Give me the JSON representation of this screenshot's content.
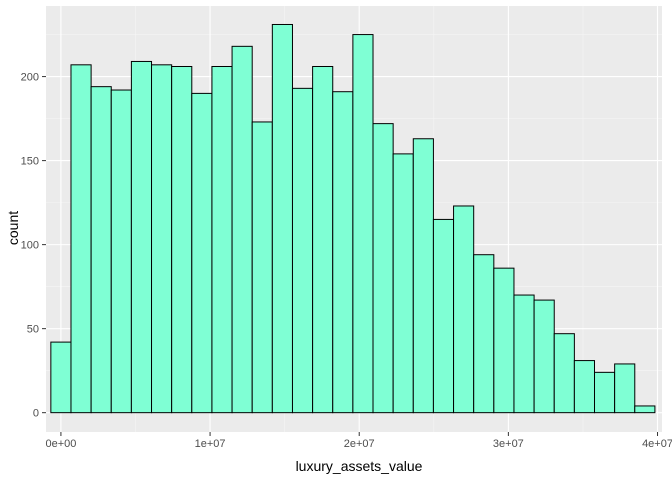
{
  "chart_data": {
    "type": "bar",
    "xlabel": "luxury_assets_value",
    "ylabel": "count",
    "xlim": [
      -1000000,
      40300000
    ],
    "ylim": [
      -11.5,
      242
    ],
    "grid": true,
    "bin_width": 1350000,
    "first_bin_left": -675000,
    "counts": [
      42,
      207,
      194,
      192,
      209,
      207,
      206,
      190,
      206,
      218,
      173,
      231,
      193,
      206,
      191,
      225,
      172,
      154,
      163,
      115,
      123,
      94,
      86,
      70,
      67,
      47,
      31,
      24,
      29,
      4
    ],
    "x_ticks": [
      {
        "value": 0,
        "label": "0e+00"
      },
      {
        "value": 10000000,
        "label": "1e+07"
      },
      {
        "value": 20000000,
        "label": "2e+07"
      },
      {
        "value": 30000000,
        "label": "3e+07"
      },
      {
        "value": 40000000,
        "label": "4e+07"
      }
    ],
    "y_ticks": [
      {
        "value": 0,
        "label": "0"
      },
      {
        "value": 50,
        "label": "50"
      },
      {
        "value": 100,
        "label": "100"
      },
      {
        "value": 150,
        "label": "150"
      },
      {
        "value": 200,
        "label": "200"
      }
    ],
    "colors": {
      "panel": "#ebebeb",
      "grid_major": "#ffffff",
      "grid_minor": "#f5f5f5",
      "bar_fill": "#7fffd4",
      "bar_outline": "#000000",
      "tick_text": "#4d4d4d",
      "tick_mark": "#333333"
    }
  }
}
